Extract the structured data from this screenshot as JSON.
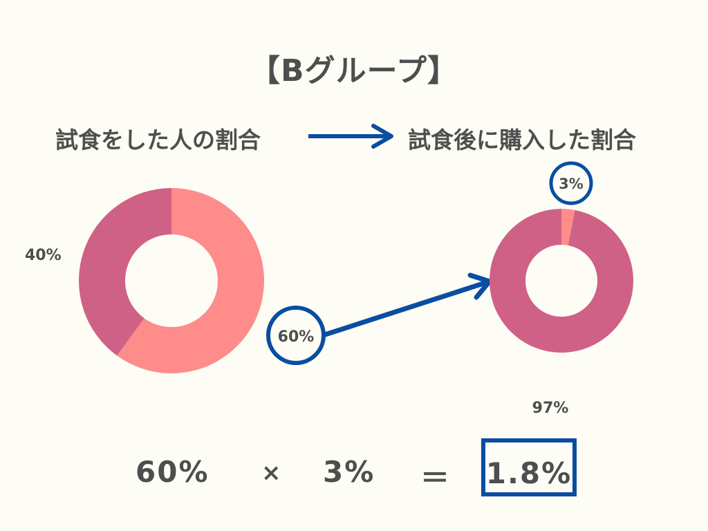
{
  "title": "【Bグループ】",
  "headings": {
    "left": "試食をした人の割合",
    "right": "試食後に購入した割合"
  },
  "colors": {
    "background": "#fdfdf5",
    "pink_light": "#fd8c8b",
    "pink_dark": "#d06186",
    "accent_blue": "#0a4da2",
    "text": "#4e4e4e"
  },
  "chart_data": [
    {
      "type": "pie",
      "variant": "donut",
      "slices": [
        {
          "label": "60%",
          "value": 60,
          "color": "#fd8c8b"
        },
        {
          "label": "40%",
          "value": 40,
          "color": "#d06186"
        }
      ]
    },
    {
      "type": "pie",
      "variant": "donut",
      "slices": [
        {
          "label": "3%",
          "value": 3,
          "color": "#fd8c8b"
        },
        {
          "label": "97%",
          "value": 97,
          "color": "#d06186"
        }
      ]
    }
  ],
  "formula": {
    "a": "60%",
    "times": "×",
    "b": "3%",
    "equals": "＝",
    "result": "1.8%"
  }
}
